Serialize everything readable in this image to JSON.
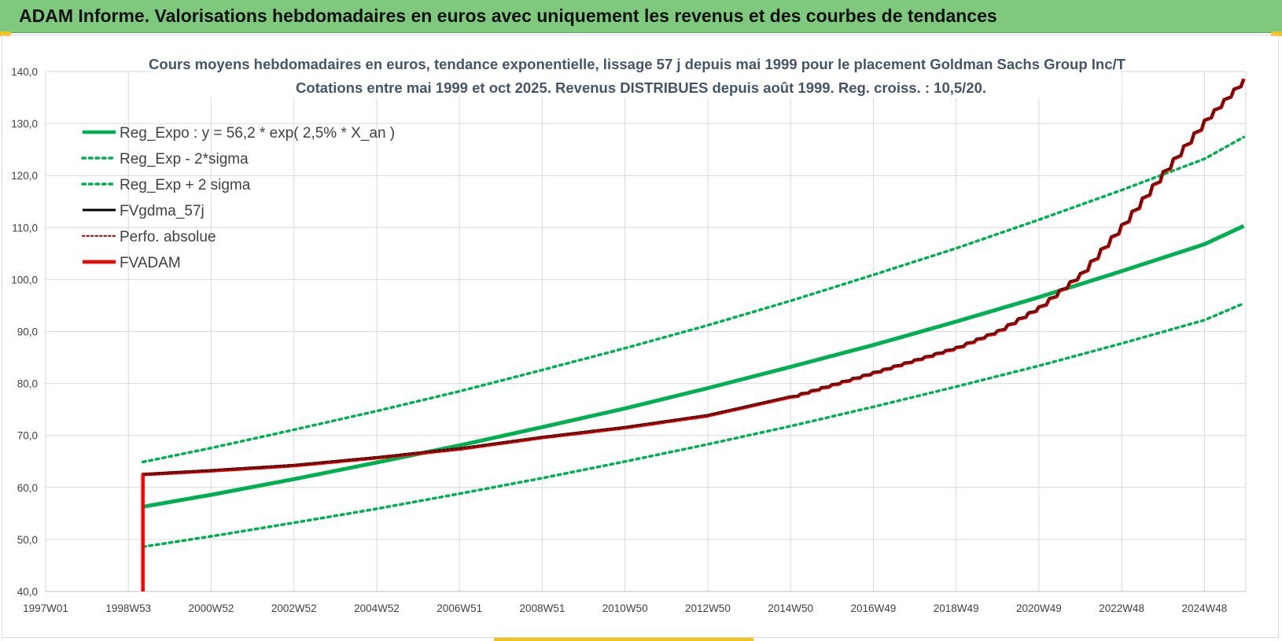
{
  "banner": {
    "title": "ADAM Informe. Valorisations hebdomadaires en euros avec uniquement les revenus et des courbes de tendances",
    "background": "#7fc97f",
    "accent": "#f2c21b"
  },
  "chart_data": {
    "type": "line",
    "title_lines": [
      "Cours moyens hebdomadaires en euros, tendance exponentielle, lissage 57 j depuis mai 1999 pour le placement Goldman Sachs Group Inc/T",
      "Cotations entre mai 1999 et oct 2025.  Revenus DISTRIBUES depuis août 1999. Reg.  croiss. : 10,5/20."
    ],
    "xlabel": "",
    "ylabel": "",
    "ylim": [
      40,
      140
    ],
    "xlim": [
      1997.0,
      2026.0
    ],
    "grid": true,
    "legend_position": "top-left",
    "y_ticks": [
      "40,0",
      "50,0",
      "60,0",
      "70,0",
      "80,0",
      "90,0",
      "100,0",
      "110,0",
      "120,0",
      "130,0",
      "140,0"
    ],
    "x_ticks": [
      {
        "label": "1997W01",
        "x": 1997.0
      },
      {
        "label": "1998W53",
        "x": 1999.0
      },
      {
        "label": "2000W52",
        "x": 2001.0
      },
      {
        "label": "2002W52",
        "x": 2003.0
      },
      {
        "label": "2004W52",
        "x": 2005.0
      },
      {
        "label": "2006W51",
        "x": 2007.0
      },
      {
        "label": "2008W51",
        "x": 2009.0
      },
      {
        "label": "2010W50",
        "x": 2011.0
      },
      {
        "label": "2012W50",
        "x": 2013.0
      },
      {
        "label": "2014W50",
        "x": 2015.0
      },
      {
        "label": "2016W49",
        "x": 2017.0
      },
      {
        "label": "2018W49",
        "x": 2019.0
      },
      {
        "label": "2020W49",
        "x": 2021.0
      },
      {
        "label": "2022W48",
        "x": 2023.0
      },
      {
        "label": "2024W48",
        "x": 2025.0
      }
    ],
    "series": [
      {
        "name": "Reg_Expo : y = 56,2 * exp( 2,5% *  X_an )",
        "color": "#00b050",
        "dash": "solid",
        "width": 5,
        "points": [
          [
            1999.35,
            56.3
          ],
          [
            2001,
            58.6
          ],
          [
            2003,
            61.6
          ],
          [
            2005,
            64.8
          ],
          [
            2007,
            68.1
          ],
          [
            2009,
            71.6
          ],
          [
            2011,
            75.2
          ],
          [
            2013,
            79.1
          ],
          [
            2015,
            83.2
          ],
          [
            2017,
            87.4
          ],
          [
            2019,
            91.9
          ],
          [
            2021,
            96.6
          ],
          [
            2023,
            101.6
          ],
          [
            2025,
            106.8
          ],
          [
            2025.95,
            110.3
          ]
        ]
      },
      {
        "name": "Reg_Exp - 2*sigma",
        "color": "#00b050",
        "dash": "dot",
        "width": 3.5,
        "points": [
          [
            1999.35,
            48.6
          ],
          [
            2001,
            50.6
          ],
          [
            2003,
            53.2
          ],
          [
            2005,
            55.9
          ],
          [
            2007,
            58.8
          ],
          [
            2009,
            61.8
          ],
          [
            2011,
            65.0
          ],
          [
            2013,
            68.3
          ],
          [
            2015,
            71.8
          ],
          [
            2017,
            75.5
          ],
          [
            2019,
            79.4
          ],
          [
            2021,
            83.4
          ],
          [
            2023,
            87.7
          ],
          [
            2025,
            92.2
          ],
          [
            2025.95,
            95.4
          ]
        ]
      },
      {
        "name": "Reg_Exp + 2 sigma",
        "color": "#00b050",
        "dash": "dot",
        "width": 3.5,
        "points": [
          [
            1999.35,
            64.9
          ],
          [
            2001,
            67.6
          ],
          [
            2003,
            71.1
          ],
          [
            2005,
            74.7
          ],
          [
            2007,
            78.5
          ],
          [
            2009,
            82.6
          ],
          [
            2011,
            86.8
          ],
          [
            2013,
            91.2
          ],
          [
            2015,
            95.9
          ],
          [
            2017,
            100.9
          ],
          [
            2019,
            106.0
          ],
          [
            2021,
            111.5
          ],
          [
            2023,
            117.2
          ],
          [
            2025,
            123.2
          ],
          [
            2025.95,
            127.4
          ]
        ]
      },
      {
        "name": "FVgdma_57j",
        "color": "#000000",
        "dash": "solid",
        "width": 3,
        "points": [
          [
            1999.35,
            62.5
          ],
          [
            2001,
            63.3
          ],
          [
            2003,
            64.3
          ],
          [
            2005,
            65.8
          ],
          [
            2007,
            67.5
          ],
          [
            2009,
            69.7
          ],
          [
            2011,
            71.6
          ],
          [
            2013,
            73.9
          ],
          [
            2015,
            77.5
          ],
          [
            2017,
            82.2
          ],
          [
            2019,
            87.0
          ],
          [
            2020,
            90.2
          ],
          [
            2021,
            94.8
          ],
          [
            2022,
            101.2
          ],
          [
            2023,
            110.6
          ],
          [
            2024,
            120.8
          ],
          [
            2025,
            130.7
          ],
          [
            2025.95,
            138.5
          ]
        ]
      },
      {
        "name": "Perfo. absolue",
        "color": "#c00000",
        "dash": "dot",
        "width": 2,
        "points": [
          [
            1999.35,
            62.5
          ],
          [
            2001,
            63.3
          ],
          [
            2003,
            64.3
          ],
          [
            2005,
            65.8
          ],
          [
            2007,
            67.5
          ],
          [
            2009,
            69.7
          ],
          [
            2011,
            71.6
          ],
          [
            2013,
            73.9
          ],
          [
            2015,
            77.5
          ],
          [
            2017,
            82.2
          ],
          [
            2019,
            87.0
          ],
          [
            2020,
            90.2
          ],
          [
            2021,
            94.8
          ],
          [
            2022,
            101.2
          ],
          [
            2023,
            110.6
          ],
          [
            2024,
            120.8
          ],
          [
            2025,
            130.7
          ],
          [
            2025.95,
            138.5
          ]
        ]
      },
      {
        "name": "FVADAM",
        "color": "#ff0000",
        "dash": "solid",
        "width": 4.5,
        "points": [
          [
            1999.35,
            40.0
          ],
          [
            1999.35,
            62.5
          ],
          [
            2001,
            63.2
          ],
          [
            2003,
            64.2
          ],
          [
            2005,
            65.7
          ],
          [
            2007,
            67.4
          ],
          [
            2009,
            69.6
          ],
          [
            2011,
            71.5
          ],
          [
            2013,
            73.8
          ],
          [
            2015,
            77.4
          ],
          [
            2017,
            82.1
          ],
          [
            2019,
            86.9
          ],
          [
            2020,
            90.1
          ],
          [
            2021,
            94.7
          ],
          [
            2022,
            101.1
          ],
          [
            2023,
            110.5
          ],
          [
            2024,
            120.7
          ],
          [
            2025,
            130.6
          ],
          [
            2025.95,
            138.6
          ]
        ]
      }
    ]
  }
}
